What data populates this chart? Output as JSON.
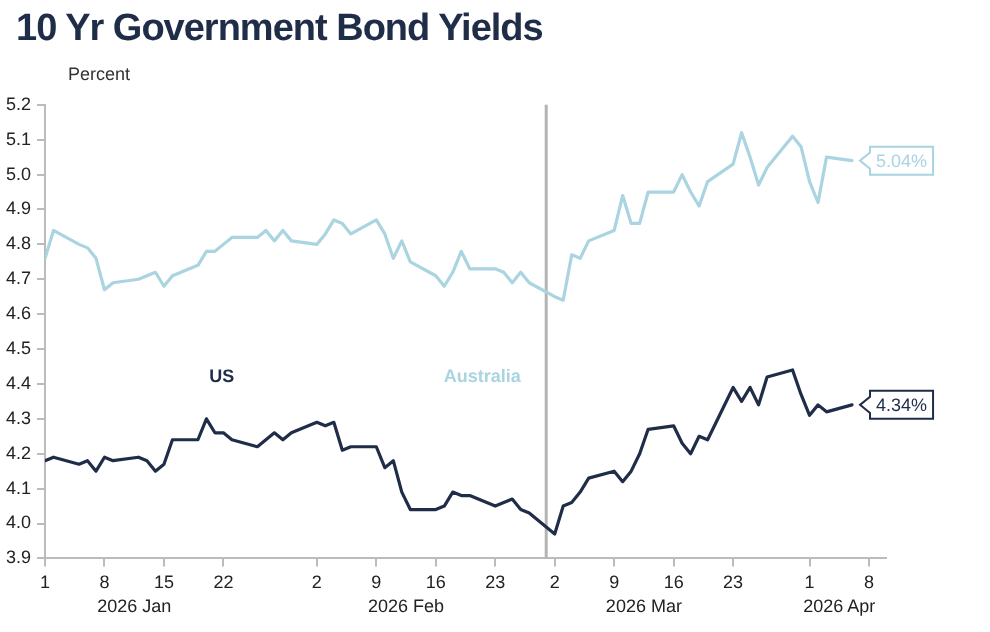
{
  "chart_data": {
    "type": "line",
    "title": "10 Yr Government Bond Yields",
    "ylabel": "Percent",
    "x": [
      "2026-01-01",
      "2026-01-02",
      "2026-01-05",
      "2026-01-06",
      "2026-01-07",
      "2026-01-08",
      "2026-01-09",
      "2026-01-12",
      "2026-01-13",
      "2026-01-14",
      "2026-01-15",
      "2026-01-16",
      "2026-01-19",
      "2026-01-20",
      "2026-01-21",
      "2026-01-22",
      "2026-01-23",
      "2026-01-26",
      "2026-01-27",
      "2026-01-28",
      "2026-01-29",
      "2026-01-30",
      "2026-02-02",
      "2026-02-03",
      "2026-02-04",
      "2026-02-05",
      "2026-02-06",
      "2026-02-09",
      "2026-02-10",
      "2026-02-11",
      "2026-02-12",
      "2026-02-13",
      "2026-02-16",
      "2026-02-17",
      "2026-02-18",
      "2026-02-19",
      "2026-02-20",
      "2026-02-23",
      "2026-02-24",
      "2026-02-25",
      "2026-02-26",
      "2026-02-27",
      "2026-03-02",
      "2026-03-03",
      "2026-03-04",
      "2026-03-05",
      "2026-03-06",
      "2026-03-09",
      "2026-03-10",
      "2026-03-11",
      "2026-03-12",
      "2026-03-13",
      "2026-03-16",
      "2026-03-17",
      "2026-03-18",
      "2026-03-19",
      "2026-03-20",
      "2026-03-23",
      "2026-03-24",
      "2026-03-25",
      "2026-03-26",
      "2026-03-27",
      "2026-03-30",
      "2026-03-31",
      "2026-04-01",
      "2026-04-02",
      "2026-04-03",
      "2026-04-06"
    ],
    "series": [
      {
        "name": "Australia",
        "color": "#a9d4e0",
        "values": [
          4.76,
          4.84,
          4.8,
          4.79,
          4.76,
          4.67,
          4.69,
          4.7,
          4.71,
          4.72,
          4.68,
          4.71,
          4.74,
          4.78,
          4.78,
          4.8,
          4.82,
          4.82,
          4.84,
          4.81,
          4.84,
          4.81,
          4.8,
          4.83,
          4.87,
          4.86,
          4.83,
          4.87,
          4.83,
          4.76,
          4.81,
          4.75,
          4.71,
          4.68,
          4.72,
          4.78,
          4.73,
          4.73,
          4.72,
          4.69,
          4.72,
          4.69,
          4.65,
          4.64,
          4.77,
          4.76,
          4.81,
          4.84,
          4.94,
          4.86,
          4.86,
          4.95,
          4.95,
          5.0,
          4.95,
          4.91,
          4.98,
          5.03,
          5.12,
          5.05,
          4.97,
          5.02,
          5.11,
          5.08,
          4.98,
          4.92,
          5.05,
          5.04
        ],
        "value_labels": [
          null,
          null,
          null,
          null,
          null,
          null,
          null,
          null,
          null,
          null,
          null,
          null,
          null,
          null,
          null,
          null,
          null,
          null,
          null,
          null,
          null,
          null,
          null,
          null,
          null,
          null,
          null,
          null,
          null,
          null,
          null,
          null,
          null,
          null,
          null,
          null,
          null,
          null,
          null,
          null,
          null,
          null,
          null,
          null,
          null,
          null,
          null,
          null,
          null,
          null,
          null,
          null,
          null,
          null,
          null,
          null,
          null,
          null,
          null,
          null,
          null,
          null,
          null,
          null,
          null,
          null,
          null,
          "5.04%"
        ]
      },
      {
        "name": "US",
        "color": "#1f2d48",
        "values": [
          4.18,
          4.19,
          4.17,
          4.18,
          4.15,
          4.19,
          4.18,
          4.19,
          4.18,
          4.15,
          4.17,
          4.24,
          4.24,
          4.3,
          4.26,
          4.26,
          4.24,
          4.22,
          4.24,
          4.26,
          4.24,
          4.26,
          4.29,
          4.28,
          4.29,
          4.21,
          4.22,
          4.22,
          4.16,
          4.18,
          4.09,
          4.04,
          4.04,
          4.05,
          4.09,
          4.08,
          4.08,
          4.05,
          4.06,
          4.07,
          4.04,
          4.03,
          3.97,
          4.05,
          4.06,
          4.09,
          4.13,
          4.15,
          4.12,
          4.15,
          4.2,
          4.27,
          4.28,
          4.23,
          4.2,
          4.25,
          4.24,
          4.39,
          4.35,
          4.39,
          4.34,
          4.42,
          4.44,
          4.37,
          4.31,
          4.34,
          4.32,
          4.34
        ],
        "value_labels": [
          null,
          null,
          null,
          null,
          null,
          null,
          null,
          null,
          null,
          null,
          null,
          null,
          null,
          null,
          null,
          null,
          null,
          null,
          null,
          null,
          null,
          null,
          null,
          null,
          null,
          null,
          null,
          null,
          null,
          null,
          null,
          null,
          null,
          null,
          null,
          null,
          null,
          null,
          null,
          null,
          null,
          null,
          null,
          null,
          null,
          null,
          null,
          null,
          null,
          null,
          null,
          null,
          null,
          null,
          null,
          null,
          null,
          null,
          null,
          null,
          null,
          null,
          null,
          null,
          null,
          null,
          null,
          "4.34%"
        ]
      }
    ],
    "xlim": [
      "2026-01-01",
      "2026-04-10"
    ],
    "xticks": [
      {
        "value": "2026-01-01",
        "label": "1"
      },
      {
        "value": "2026-01-08",
        "label": "8"
      },
      {
        "value": "2026-01-15",
        "label": "15"
      },
      {
        "value": "2026-01-22",
        "label": "22"
      },
      {
        "value": "2026-02-02",
        "label": "2"
      },
      {
        "value": "2026-02-09",
        "label": "9"
      },
      {
        "value": "2026-02-16",
        "label": "16"
      },
      {
        "value": "2026-02-23",
        "label": "23"
      },
      {
        "value": "2026-03-02",
        "label": "2"
      },
      {
        "value": "2026-03-09",
        "label": "9"
      },
      {
        "value": "2026-03-16",
        "label": "16"
      },
      {
        "value": "2026-03-23",
        "label": "23"
      },
      {
        "value": "2026-04-01",
        "label": "1"
      },
      {
        "value": "2026-04-08",
        "label": "8"
      }
    ],
    "ylim": [
      3.9,
      5.2
    ],
    "yticks": [
      {
        "value": 3.9,
        "label": "3.9"
      },
      {
        "value": 4.0,
        "label": "4.0"
      },
      {
        "value": 4.1,
        "label": "4.1"
      },
      {
        "value": 4.2,
        "label": "4.2"
      },
      {
        "value": 4.3,
        "label": "4.3"
      },
      {
        "value": 4.4,
        "label": "4.4"
      },
      {
        "value": 4.5,
        "label": "4.5"
      },
      {
        "value": 4.6,
        "label": "4.6"
      },
      {
        "value": 4.7,
        "label": "4.7"
      },
      {
        "value": 4.8,
        "label": "4.8"
      },
      {
        "value": 4.9,
        "label": "4.9"
      },
      {
        "value": 5.0,
        "label": "5.0"
      },
      {
        "value": 5.1,
        "label": "5.1"
      },
      {
        "value": 5.2,
        "label": "5.2"
      }
    ],
    "ref_lines": [
      {
        "axis": "x",
        "value": "2026-03-01",
        "color": "#b4b4b4"
      }
    ],
    "annotations": [
      "2026 Jan",
      "2026 Feb",
      "2026 Mar",
      "2026 Apr"
    ],
    "grid": false,
    "legend": false,
    "marker": "none",
    "line_style": "solid"
  }
}
